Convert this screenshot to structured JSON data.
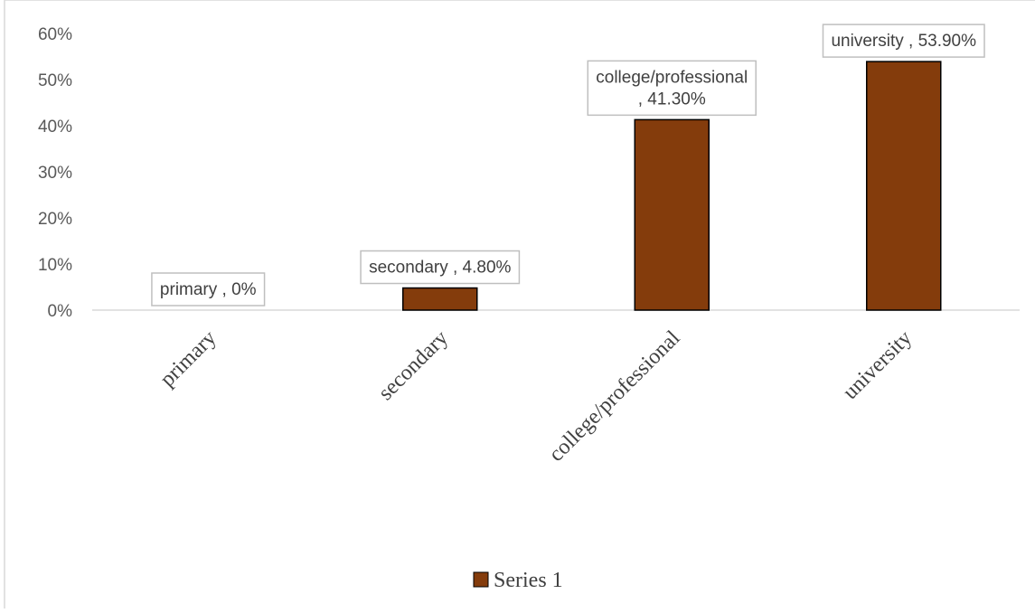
{
  "chart_data": {
    "type": "bar",
    "title": "",
    "xlabel": "",
    "ylabel": "",
    "categories": [
      "primary",
      "secondary",
      "college/professional",
      "university"
    ],
    "series": [
      {
        "name": "Series 1",
        "values": [
          0,
          4.8,
          41.3,
          53.9
        ],
        "color": "#843C0C"
      }
    ],
    "data_labels": [
      [
        "primary , 0%"
      ],
      [
        "secondary , 4.80%"
      ],
      [
        "college/professional",
        ", 41.30%"
      ],
      [
        "university , 53.90%"
      ]
    ],
    "y_ticks": [
      "0%",
      "10%",
      "20%",
      "30%",
      "40%",
      "50%",
      "60%"
    ],
    "ylim": [
      0,
      60
    ],
    "y_unit": "percent",
    "grid": false,
    "legend_position": "bottom"
  }
}
